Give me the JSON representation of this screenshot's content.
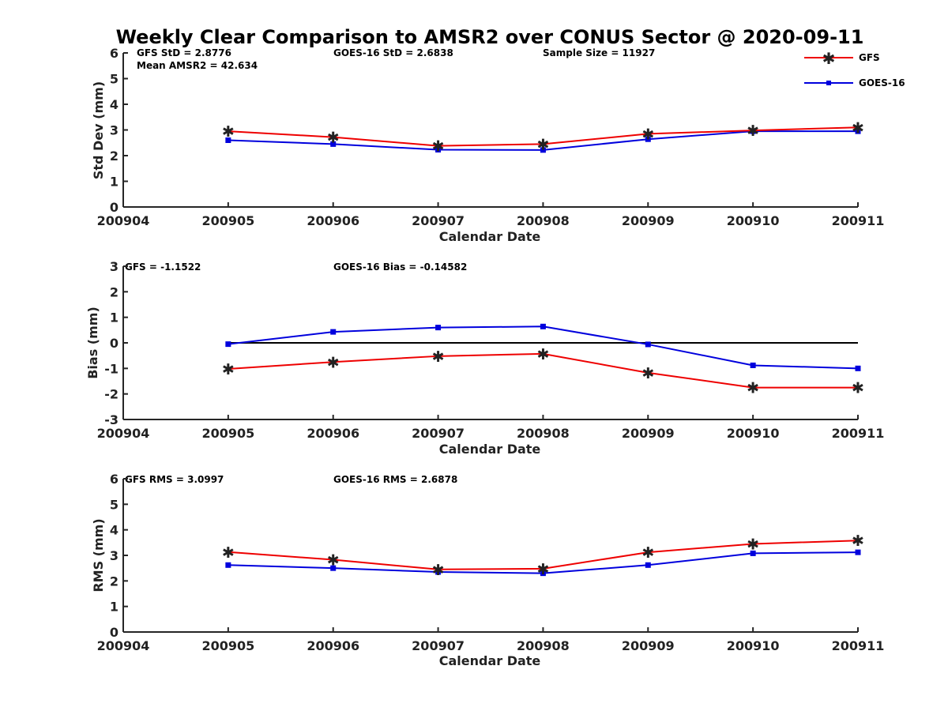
{
  "title": "Weekly Clear Comparison to AMSR2 over CONUS Sector @ 2020-09-11",
  "colors": {
    "GFS": "#ee0000",
    "GOES-16": "#0000dd",
    "zero_line": "#000000"
  },
  "legend": {
    "position": "top-right",
    "entries": [
      {
        "name": "GFS",
        "marker": "star"
      },
      {
        "name": "GOES-16",
        "marker": "square"
      }
    ]
  },
  "chart_data": [
    {
      "type": "line",
      "x_ticks": [
        "200904",
        "200905",
        "200906",
        "200907",
        "200908",
        "200909",
        "200910",
        "200911"
      ],
      "x": [
        "200905",
        "200906",
        "200907",
        "200908",
        "200909",
        "200910",
        "200911"
      ],
      "xlabel": "Calendar Date",
      "ylabel": "Std Dev (mm)",
      "ylim": [
        0,
        6
      ],
      "y_ticks": [
        "0",
        "1",
        "2",
        "3",
        "4",
        "5",
        "6"
      ],
      "grid": false,
      "annotations": [
        "GFS StD = 2.8776",
        "GOES-16 StD = 2.6838",
        "Sample Size = 11927",
        "Mean AMSR2 = 42.634"
      ],
      "series": [
        {
          "name": "GFS",
          "values": [
            2.95,
            2.72,
            2.38,
            2.45,
            2.85,
            2.98,
            3.1
          ]
        },
        {
          "name": "GOES-16",
          "values": [
            2.6,
            2.45,
            2.23,
            2.22,
            2.64,
            2.95,
            2.95
          ]
        }
      ]
    },
    {
      "type": "line",
      "x_ticks": [
        "200904",
        "200905",
        "200906",
        "200907",
        "200908",
        "200909",
        "200910",
        "200911"
      ],
      "x": [
        "200905",
        "200906",
        "200907",
        "200908",
        "200909",
        "200910",
        "200911"
      ],
      "xlabel": "Calendar Date",
      "ylabel": "Bias (mm)",
      "ylim": [
        -3,
        3
      ],
      "y_ticks": [
        "-3",
        "-2",
        "-1",
        "0",
        "1",
        "2",
        "3"
      ],
      "grid": false,
      "reference_line_y": 0,
      "annotations": [
        "GFS = -1.1522",
        "GOES-16 Bias  = -0.14582"
      ],
      "series": [
        {
          "name": "GFS",
          "values": [
            -1.02,
            -0.75,
            -0.52,
            -0.43,
            -1.17,
            -1.75,
            -1.75
          ]
        },
        {
          "name": "GOES-16",
          "values": [
            -0.05,
            0.43,
            0.6,
            0.64,
            -0.06,
            -0.88,
            -1.0
          ]
        }
      ]
    },
    {
      "type": "line",
      "x_ticks": [
        "200904",
        "200905",
        "200906",
        "200907",
        "200908",
        "200909",
        "200910",
        "200911"
      ],
      "x": [
        "200905",
        "200906",
        "200907",
        "200908",
        "200909",
        "200910",
        "200911"
      ],
      "xlabel": "Calendar Date",
      "ylabel": "RMS (mm)",
      "ylim": [
        0,
        6
      ],
      "y_ticks": [
        "0",
        "1",
        "2",
        "3",
        "4",
        "5",
        "6"
      ],
      "grid": false,
      "annotations": [
        "GFS RMS = 3.0997",
        "GOES-16 RMS = 2.6878"
      ],
      "series": [
        {
          "name": "GFS",
          "values": [
            3.13,
            2.83,
            2.45,
            2.48,
            3.12,
            3.45,
            3.58
          ]
        },
        {
          "name": "GOES-16",
          "values": [
            2.62,
            2.5,
            2.35,
            2.3,
            2.62,
            3.08,
            3.12
          ]
        }
      ]
    }
  ]
}
